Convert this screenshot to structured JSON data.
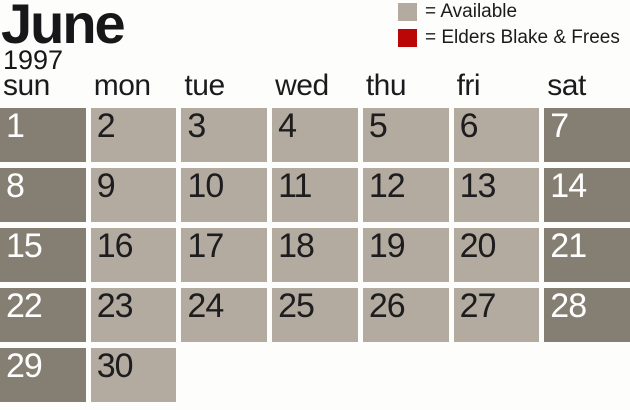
{
  "title": {
    "month": "June",
    "year": "1997"
  },
  "legend": {
    "items": [
      {
        "name": "available",
        "swatch_color": "#b3aba0",
        "label": "= Available"
      },
      {
        "name": "elders-blake-frees",
        "swatch_color": "#bb0607",
        "label": "= Elders Blake & Frees"
      }
    ]
  },
  "weekday_headers": [
    "sun",
    "mon",
    "tue",
    "wed",
    "thu",
    "fri",
    "sat"
  ],
  "calendar": {
    "days": [
      {
        "label": "1",
        "status": "weekend"
      },
      {
        "label": "2",
        "status": "available"
      },
      {
        "label": "3",
        "status": "available"
      },
      {
        "label": "4",
        "status": "available"
      },
      {
        "label": "5",
        "status": "available"
      },
      {
        "label": "6",
        "status": "available"
      },
      {
        "label": "7",
        "status": "weekend"
      },
      {
        "label": "8",
        "status": "weekend"
      },
      {
        "label": "9",
        "status": "available"
      },
      {
        "label": "10",
        "status": "available"
      },
      {
        "label": "11",
        "status": "available"
      },
      {
        "label": "12",
        "status": "available"
      },
      {
        "label": "13",
        "status": "available"
      },
      {
        "label": "14",
        "status": "weekend"
      },
      {
        "label": "15",
        "status": "weekend"
      },
      {
        "label": "16",
        "status": "available"
      },
      {
        "label": "17",
        "status": "available"
      },
      {
        "label": "18",
        "status": "available"
      },
      {
        "label": "19",
        "status": "available"
      },
      {
        "label": "20",
        "status": "available"
      },
      {
        "label": "21",
        "status": "weekend"
      },
      {
        "label": "22",
        "status": "weekend"
      },
      {
        "label": "23",
        "status": "available"
      },
      {
        "label": "24",
        "status": "available"
      },
      {
        "label": "25",
        "status": "available"
      },
      {
        "label": "26",
        "status": "available"
      },
      {
        "label": "27",
        "status": "available"
      },
      {
        "label": "28",
        "status": "weekend"
      },
      {
        "label": "29",
        "status": "weekend"
      },
      {
        "label": "30",
        "status": "available"
      }
    ]
  },
  "colors": {
    "background": "#fdfefb",
    "available_cell": "#b3aba0",
    "weekend_cell": "#857e72",
    "reserved": "#bb0607",
    "ink": "#1b1b1d"
  }
}
